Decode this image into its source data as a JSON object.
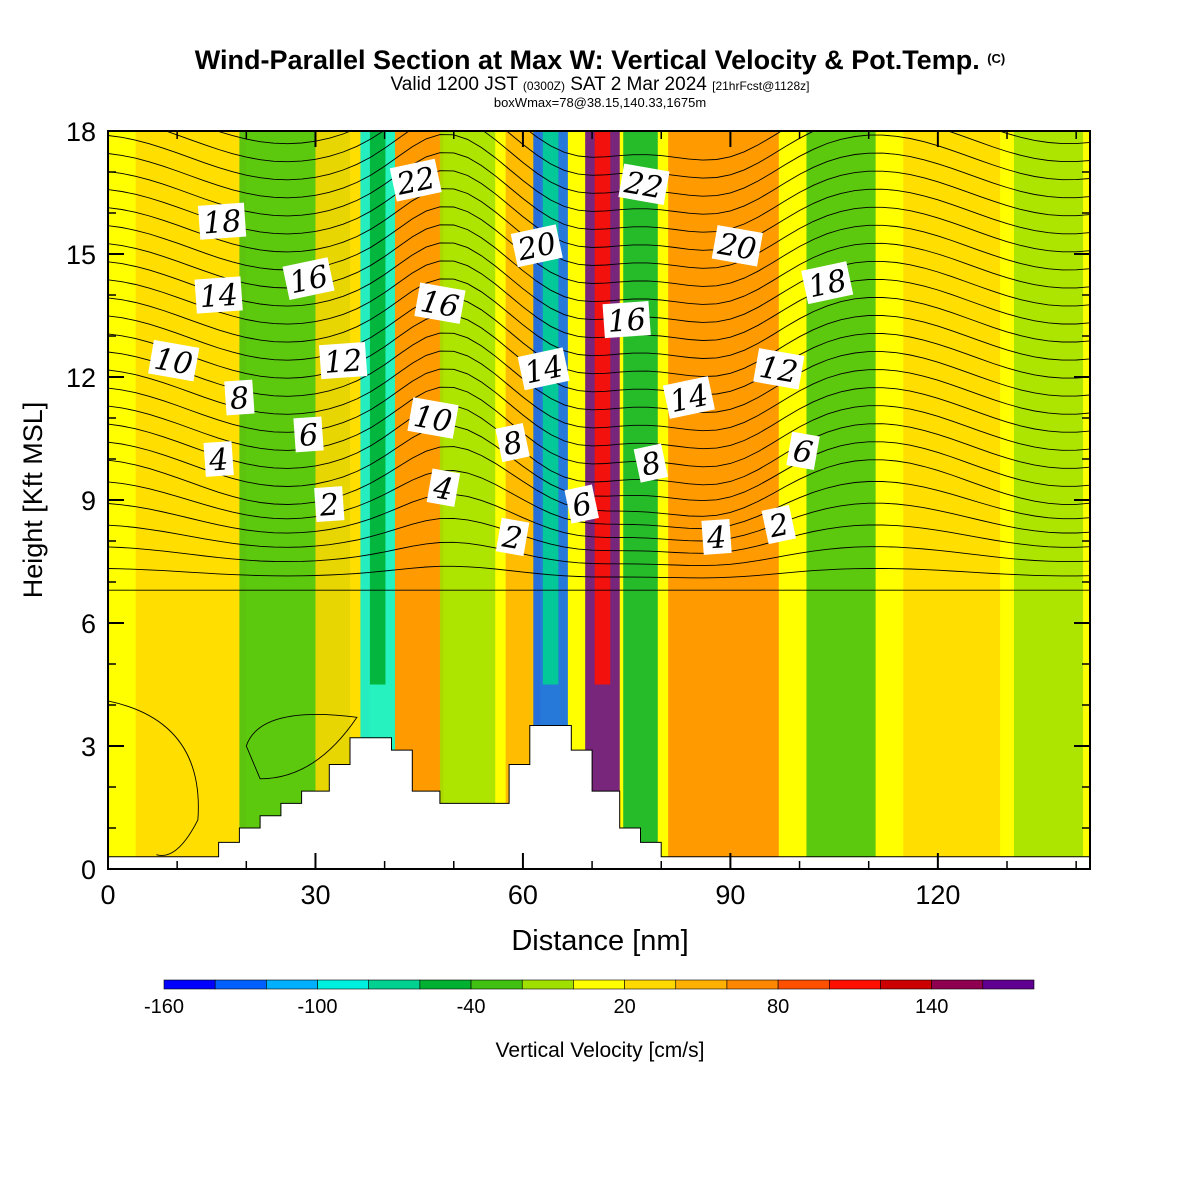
{
  "title": {
    "main": "Wind-Parallel Section at Max W: Vertical Velocity & Pot.Temp.",
    "copyright": "(C)",
    "valid_prefix": "Valid 1200 JST",
    "valid_utc": "(0300Z)",
    "valid_date": "SAT 2 Mar 2024",
    "forecast": "[21hrFcst@1128z]",
    "boxwmax": "boxWmax=78@38.15,140.33,1675m"
  },
  "chart_data": {
    "type": "heatmap",
    "xlabel": "Distance [nm]",
    "ylabel": "Height [Kft MSL]",
    "xlim": [
      0,
      142
    ],
    "ylim": [
      0,
      18
    ],
    "xticks": [
      0,
      30,
      60,
      90,
      120
    ],
    "yticks": [
      0,
      3,
      6,
      9,
      12,
      15,
      18
    ],
    "grid": false,
    "colorbar": {
      "label": "Vertical Velocity [cm/s]",
      "ticks": [
        -160,
        -100,
        -40,
        20,
        80,
        140
      ],
      "colors": [
        "#0000ff",
        "#0060ff",
        "#00b0ff",
        "#00f0e0",
        "#00d090",
        "#00b030",
        "#40c010",
        "#a0e000",
        "#ffff00",
        "#ffd800",
        "#ffb000",
        "#ff8800",
        "#ff5000",
        "#ff1000",
        "#cc0000",
        "#900050",
        "#600090"
      ]
    },
    "velocity_bands": [
      {
        "x": 4,
        "w": 6,
        "v": 0
      },
      {
        "x": 12,
        "w": 8,
        "v": 10
      },
      {
        "x": 27,
        "w": 8,
        "v": -40
      },
      {
        "x": 34,
        "w": 4,
        "v": 25
      },
      {
        "x": 39,
        "w": 2.5,
        "v": -100
      },
      {
        "x": 45,
        "w": 3.5,
        "v": 60
      },
      {
        "x": 52,
        "w": 4,
        "v": -25
      },
      {
        "x": 60,
        "w": 2.5,
        "v": 40
      },
      {
        "x": 64,
        "w": 2.5,
        "v": -140
      },
      {
        "x": 71.5,
        "w": 2.5,
        "v": 150
      },
      {
        "x": 77,
        "w": 2.5,
        "v": -60
      },
      {
        "x": 89,
        "w": 8,
        "v": 50
      },
      {
        "x": 106,
        "w": 5,
        "v": -40
      },
      {
        "x": 122,
        "w": 7,
        "v": 10
      },
      {
        "x": 136,
        "w": 5,
        "v": -20
      }
    ],
    "terrain": [
      [
        0,
        0.3
      ],
      [
        16,
        0.3
      ],
      [
        16,
        0.65
      ],
      [
        19,
        0.65
      ],
      [
        19,
        1.0
      ],
      [
        22,
        1.0
      ],
      [
        22,
        1.3
      ],
      [
        25,
        1.3
      ],
      [
        25,
        1.6
      ],
      [
        28,
        1.6
      ],
      [
        28,
        1.9
      ],
      [
        32,
        1.9
      ],
      [
        32,
        2.55
      ],
      [
        35,
        2.55
      ],
      [
        35,
        3.2
      ],
      [
        41,
        3.2
      ],
      [
        41,
        2.9
      ],
      [
        44,
        2.9
      ],
      [
        44,
        1.9
      ],
      [
        48,
        1.9
      ],
      [
        48,
        1.6
      ],
      [
        58,
        1.6
      ],
      [
        58,
        2.55
      ],
      [
        61,
        2.55
      ],
      [
        61,
        3.5
      ],
      [
        67,
        3.5
      ],
      [
        67,
        2.9
      ],
      [
        70,
        2.9
      ],
      [
        70,
        1.9
      ],
      [
        74,
        1.9
      ],
      [
        74,
        1.0
      ],
      [
        77,
        1.0
      ],
      [
        77,
        0.65
      ],
      [
        80,
        0.65
      ],
      [
        80,
        0.3
      ],
      [
        142,
        0.3
      ]
    ],
    "theta_labels": [
      {
        "t": "22",
        "x": 44.5,
        "y": 16.8
      },
      {
        "t": "22",
        "x": 77.5,
        "y": 16.7
      },
      {
        "t": "18",
        "x": 16.5,
        "y": 15.8
      },
      {
        "t": "20",
        "x": 62,
        "y": 15.2
      },
      {
        "t": "20",
        "x": 91,
        "y": 15.2
      },
      {
        "t": "14",
        "x": 16,
        "y": 14.0
      },
      {
        "t": "16",
        "x": 29,
        "y": 14.4
      },
      {
        "t": "16",
        "x": 48,
        "y": 13.8
      },
      {
        "t": "16",
        "x": 75,
        "y": 13.4
      },
      {
        "t": "18",
        "x": 104,
        "y": 14.3
      },
      {
        "t": "10",
        "x": 9.5,
        "y": 12.4
      },
      {
        "t": "12",
        "x": 34,
        "y": 12.4
      },
      {
        "t": "14",
        "x": 63,
        "y": 12.2
      },
      {
        "t": "12",
        "x": 97,
        "y": 12.2
      },
      {
        "t": "8",
        "x": 19,
        "y": 11.5
      },
      {
        "t": "14",
        "x": 84,
        "y": 11.5
      },
      {
        "t": "10",
        "x": 47,
        "y": 11.0
      },
      {
        "t": "6",
        "x": 29,
        "y": 10.6
      },
      {
        "t": "8",
        "x": 58.5,
        "y": 10.4
      },
      {
        "t": "6",
        "x": 100.5,
        "y": 10.2
      },
      {
        "t": "4",
        "x": 16,
        "y": 10.0
      },
      {
        "t": "8",
        "x": 78.5,
        "y": 9.9
      },
      {
        "t": "4",
        "x": 48.5,
        "y": 9.3
      },
      {
        "t": "2",
        "x": 32,
        "y": 8.9
      },
      {
        "t": "6",
        "x": 68.5,
        "y": 8.9
      },
      {
        "t": "2",
        "x": 58.5,
        "y": 8.1
      },
      {
        "t": "4",
        "x": 88,
        "y": 8.1
      },
      {
        "t": "2",
        "x": 97,
        "y": 8.4
      }
    ]
  }
}
